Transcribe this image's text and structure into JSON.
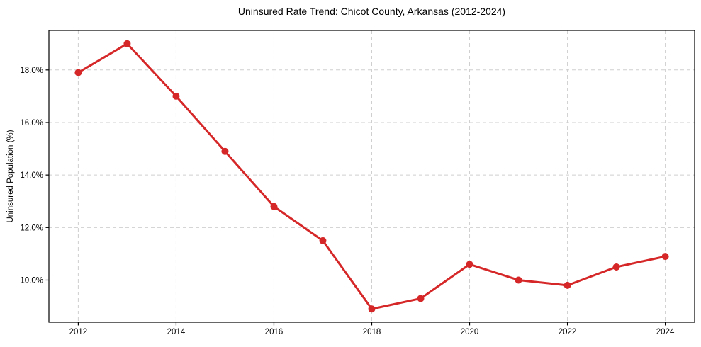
{
  "chart_data": {
    "type": "line",
    "title": "Uninsured Rate Trend: Chicot County, Arkansas (2012-2024)",
    "xlabel": "",
    "ylabel": "Uninsured Population (%)",
    "x": [
      2012,
      2013,
      2014,
      2015,
      2016,
      2017,
      2018,
      2019,
      2020,
      2021,
      2022,
      2023,
      2024
    ],
    "values": [
      17.9,
      19.0,
      17.0,
      14.9,
      12.8,
      11.5,
      8.9,
      9.3,
      10.6,
      10.0,
      9.8,
      10.5,
      10.9
    ],
    "xticks": [
      2012,
      2014,
      2016,
      2018,
      2020,
      2022,
      2024
    ],
    "xtick_labels": [
      "2012",
      "2014",
      "2016",
      "2018",
      "2020",
      "2022",
      "2024"
    ],
    "yticks": [
      10,
      12,
      14,
      16,
      18
    ],
    "ytick_labels": [
      "10.0%",
      "12.0%",
      "14.0%",
      "16.0%",
      "18.0%"
    ],
    "xlim": [
      2011.4,
      2024.6
    ],
    "ylim": [
      8.395,
      19.505
    ],
    "grid": true,
    "legend_position": "none",
    "line_color": "#d62728",
    "grid_color": "#cfcfcf",
    "marker": "circle"
  }
}
